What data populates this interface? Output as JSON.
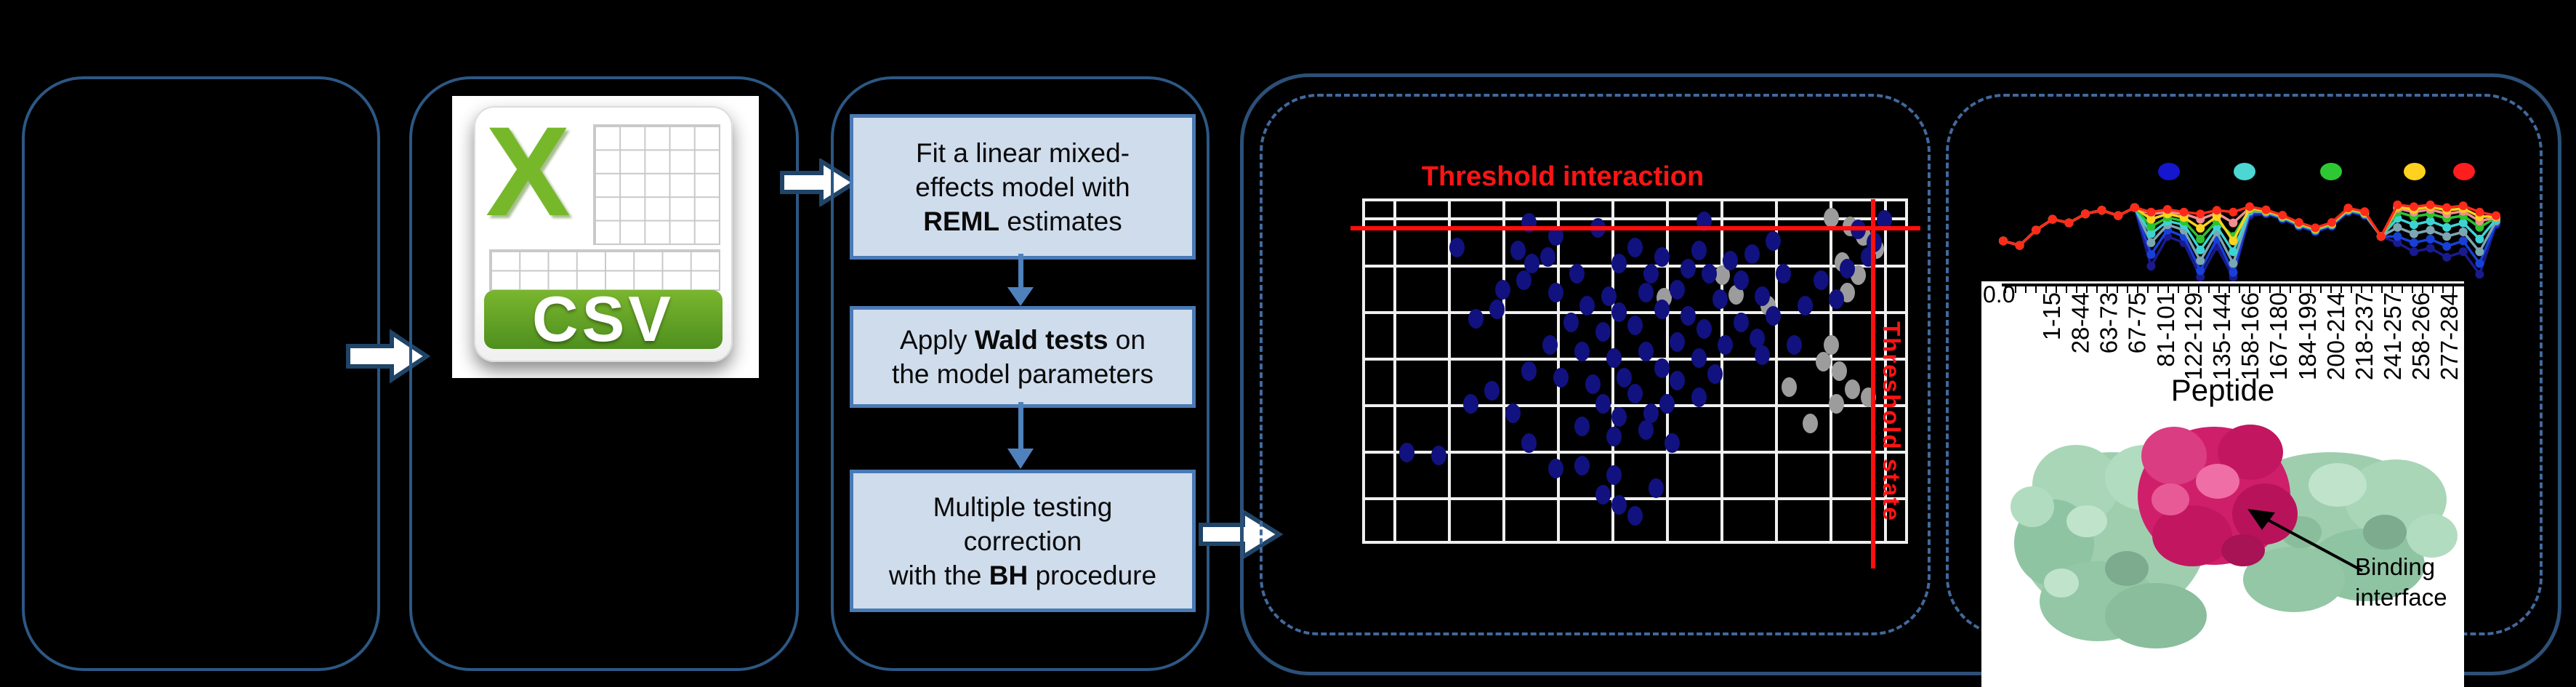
{
  "figure": {
    "csv": {
      "letter": "X",
      "label": "CSV"
    },
    "workflow": {
      "step1": {
        "line1": "Fit a linear mixed-",
        "line2": "effects model with",
        "bold": "REML",
        "rest": " estimates"
      },
      "step2": {
        "pre": "Apply ",
        "bold": "Wald tests",
        "post": " on",
        "line2": "the model parameters"
      },
      "step3": {
        "line1": "Multiple testing",
        "line2": "correction",
        "pre": "with the ",
        "bold": "BH",
        "post": " procedure"
      }
    },
    "annotation": {
      "line1": "Binding",
      "line2": "interface"
    },
    "colors": {
      "panel_border": "#2c5784",
      "container_border": "#2c5077",
      "dashed_border": "#41699c",
      "step_fill": "#cfdcec",
      "step_border": "#4a7ab5",
      "flow_arrow_blue": "#4f81bd",
      "block_arrow_outline": "#1f4467",
      "red": "#fe1414",
      "scatter_blue": "#11127f",
      "scatter_gray": "#9c9c9c",
      "grid_white": "#efefef",
      "csv_green": "#76b82a",
      "protein_green": "#9fceaf",
      "protein_magenta": "#cf1f6b"
    }
  },
  "chart_data": [
    {
      "type": "scatter",
      "title": "Threshold interaction",
      "threshold_h_label": "Threshold interaction",
      "threshold_v_label": "Threshold state",
      "xlabel": "",
      "ylabel": "",
      "axis_labels_visible": false,
      "grid": true,
      "threshold_h_y": 0.084,
      "threshold_v_x": 0.937,
      "points_blue": [
        [
          0.3,
          0.045
        ],
        [
          0.63,
          0.04
        ],
        [
          0.76,
          0.1
        ],
        [
          0.43,
          0.06
        ],
        [
          0.35,
          0.085
        ],
        [
          0.92,
          0.065
        ],
        [
          0.95,
          0.105
        ],
        [
          0.28,
          0.13
        ],
        [
          0.305,
          0.17
        ],
        [
          0.335,
          0.15
        ],
        [
          0.165,
          0.12
        ],
        [
          0.5,
          0.12
        ],
        [
          0.55,
          0.15
        ],
        [
          0.62,
          0.13
        ],
        [
          0.68,
          0.16
        ],
        [
          0.72,
          0.14
        ],
        [
          0.6,
          0.185
        ],
        [
          0.64,
          0.2
        ],
        [
          0.53,
          0.2
        ],
        [
          0.47,
          0.17
        ],
        [
          0.39,
          0.2
        ],
        [
          0.29,
          0.22
        ],
        [
          0.25,
          0.25
        ],
        [
          0.35,
          0.26
        ],
        [
          0.45,
          0.27
        ],
        [
          0.52,
          0.26
        ],
        [
          0.58,
          0.25
        ],
        [
          0.7,
          0.22
        ],
        [
          0.78,
          0.2
        ],
        [
          0.85,
          0.22
        ],
        [
          0.66,
          0.28
        ],
        [
          0.74,
          0.27
        ],
        [
          0.41,
          0.3
        ],
        [
          0.47,
          0.32
        ],
        [
          0.55,
          0.31
        ],
        [
          0.6,
          0.33
        ],
        [
          0.5,
          0.36
        ],
        [
          0.44,
          0.38
        ],
        [
          0.38,
          0.35
        ],
        [
          0.63,
          0.37
        ],
        [
          0.7,
          0.35
        ],
        [
          0.76,
          0.33
        ],
        [
          0.82,
          0.3
        ],
        [
          0.88,
          0.28
        ],
        [
          0.73,
          0.4
        ],
        [
          0.67,
          0.42
        ],
        [
          0.58,
          0.41
        ],
        [
          0.52,
          0.44
        ],
        [
          0.46,
          0.46
        ],
        [
          0.4,
          0.44
        ],
        [
          0.34,
          0.42
        ],
        [
          0.62,
          0.46
        ],
        [
          0.74,
          0.45
        ],
        [
          0.8,
          0.42
        ],
        [
          0.55,
          0.49
        ],
        [
          0.48,
          0.52
        ],
        [
          0.42,
          0.54
        ],
        [
          0.36,
          0.52
        ],
        [
          0.3,
          0.5
        ],
        [
          0.58,
          0.53
        ],
        [
          0.65,
          0.51
        ],
        [
          0.5,
          0.57
        ],
        [
          0.44,
          0.6
        ],
        [
          0.56,
          0.6
        ],
        [
          0.62,
          0.58
        ],
        [
          0.23,
          0.56
        ],
        [
          0.19,
          0.6
        ],
        [
          0.27,
          0.63
        ],
        [
          0.47,
          0.64
        ],
        [
          0.53,
          0.63
        ],
        [
          0.4,
          0.67
        ],
        [
          0.46,
          0.7
        ],
        [
          0.52,
          0.68
        ],
        [
          0.3,
          0.72
        ],
        [
          0.57,
          0.72
        ],
        [
          0.13,
          0.76
        ],
        [
          0.07,
          0.75
        ],
        [
          0.35,
          0.8
        ],
        [
          0.4,
          0.79
        ],
        [
          0.46,
          0.82
        ],
        [
          0.44,
          0.88
        ],
        [
          0.47,
          0.91
        ],
        [
          0.5,
          0.945
        ],
        [
          0.54,
          0.86
        ],
        [
          0.97,
          0.035
        ],
        [
          0.94,
          0.15
        ],
        [
          0.9,
          0.185
        ],
        [
          0.2,
          0.34
        ],
        [
          0.24,
          0.31
        ]
      ],
      "points_gray": [
        [
          0.87,
          0.03
        ],
        [
          0.905,
          0.055
        ],
        [
          0.93,
          0.085
        ],
        [
          0.955,
          0.125
        ],
        [
          0.89,
          0.165
        ],
        [
          0.92,
          0.205
        ],
        [
          0.9,
          0.26
        ],
        [
          0.665,
          0.205
        ],
        [
          0.69,
          0.265
        ],
        [
          0.75,
          0.3
        ],
        [
          0.87,
          0.42
        ],
        [
          0.855,
          0.47
        ],
        [
          0.885,
          0.5
        ],
        [
          0.91,
          0.555
        ],
        [
          0.88,
          0.6
        ],
        [
          0.94,
          0.58
        ],
        [
          0.83,
          0.66
        ],
        [
          0.79,
          0.55
        ],
        [
          0.555,
          0.275
        ]
      ]
    },
    {
      "type": "line",
      "xlabel": "Peptide",
      "y_axis_tick": "0.0",
      "categories": [
        "1-15",
        "28-44",
        "63-73",
        "67-75",
        "81-101",
        "122-129",
        "135-144",
        "158-166",
        "167-180",
        "184-199",
        "200-214",
        "218-237",
        "241-257",
        "258-266",
        "277-284"
      ],
      "legend_dot_colors": [
        "#1616cf",
        "#4cd7d2",
        "#2ec932",
        "#ffd21f",
        "#ff1d1d"
      ],
      "values_are": "normalized vertical position from chart top (0=top, 1=bottom)",
      "series": [
        {
          "name": "navy",
          "color": "#1a1a8f",
          "y_frac_top": [
            0.6,
            0.65,
            0.48,
            0.36,
            0.4,
            0.3,
            0.26,
            0.32,
            0.23,
            0.88,
            0.55,
            0.62,
            1.0,
            0.66,
            1.0,
            0.32,
            0.3,
            0.36,
            0.44,
            0.5,
            0.44,
            0.28,
            0.32,
            0.55,
            0.62,
            0.72,
            0.68,
            0.78,
            0.72,
            0.97,
            0.42
          ]
        },
        {
          "name": "blue",
          "color": "#1840d8",
          "y_frac_top": [
            0.6,
            0.65,
            0.48,
            0.36,
            0.4,
            0.3,
            0.26,
            0.32,
            0.23,
            0.75,
            0.48,
            0.55,
            0.93,
            0.58,
            0.95,
            0.29,
            0.29,
            0.35,
            0.43,
            0.49,
            0.43,
            0.27,
            0.31,
            0.55,
            0.55,
            0.62,
            0.58,
            0.66,
            0.6,
            0.85,
            0.4
          ]
        },
        {
          "name": "steel",
          "color": "#7ca6b0",
          "y_frac_top": [
            0.6,
            0.65,
            0.48,
            0.36,
            0.4,
            0.3,
            0.26,
            0.32,
            0.23,
            0.62,
            0.42,
            0.48,
            0.82,
            0.5,
            0.85,
            0.27,
            0.28,
            0.34,
            0.42,
            0.48,
            0.42,
            0.26,
            0.3,
            0.55,
            0.45,
            0.52,
            0.48,
            0.55,
            0.5,
            0.72,
            0.38
          ]
        },
        {
          "name": "cyan",
          "color": "#3ed3d3",
          "y_frac_top": [
            0.6,
            0.65,
            0.48,
            0.36,
            0.4,
            0.3,
            0.26,
            0.32,
            0.23,
            0.52,
            0.38,
            0.42,
            0.7,
            0.44,
            0.72,
            0.26,
            0.275,
            0.335,
            0.415,
            0.475,
            0.415,
            0.255,
            0.295,
            0.55,
            0.35,
            0.42,
            0.38,
            0.45,
            0.4,
            0.58,
            0.36
          ]
        },
        {
          "name": "green",
          "color": "#2ec32e",
          "y_frac_top": [
            0.6,
            0.65,
            0.48,
            0.36,
            0.4,
            0.3,
            0.26,
            0.32,
            0.23,
            0.44,
            0.34,
            0.38,
            0.58,
            0.38,
            0.55,
            0.25,
            0.27,
            0.33,
            0.41,
            0.47,
            0.41,
            0.25,
            0.29,
            0.55,
            0.28,
            0.33,
            0.3,
            0.35,
            0.32,
            0.45,
            0.34
          ]
        },
        {
          "name": "salmon",
          "color": "#f28e8e",
          "y_frac_top": [
            0.6,
            0.65,
            0.48,
            0.36,
            0.4,
            0.3,
            0.26,
            0.32,
            0.23,
            0.3,
            0.28,
            0.3,
            0.36,
            0.29,
            0.4,
            0.235,
            0.26,
            0.32,
            0.4,
            0.46,
            0.4,
            0.24,
            0.28,
            0.55,
            0.24,
            0.28,
            0.25,
            0.3,
            0.27,
            0.38,
            0.34
          ]
        },
        {
          "name": "yellow",
          "color": "#ffd21f",
          "y_frac_top": [
            0.6,
            0.65,
            0.48,
            0.36,
            0.4,
            0.3,
            0.26,
            0.32,
            0.23,
            0.36,
            0.3,
            0.34,
            0.46,
            0.33,
            0.6,
            0.24,
            0.265,
            0.325,
            0.405,
            0.465,
            0.405,
            0.245,
            0.285,
            0.55,
            0.22,
            0.25,
            0.22,
            0.26,
            0.24,
            0.33,
            0.33
          ]
        },
        {
          "name": "red",
          "color": "#ff2a1a",
          "y_frac_top": [
            0.6,
            0.65,
            0.48,
            0.36,
            0.4,
            0.3,
            0.26,
            0.32,
            0.23,
            0.28,
            0.25,
            0.28,
            0.3,
            0.26,
            0.28,
            0.22,
            0.255,
            0.315,
            0.395,
            0.455,
            0.395,
            0.235,
            0.275,
            0.55,
            0.2,
            0.22,
            0.2,
            0.23,
            0.21,
            0.28,
            0.32
          ]
        }
      ]
    }
  ]
}
